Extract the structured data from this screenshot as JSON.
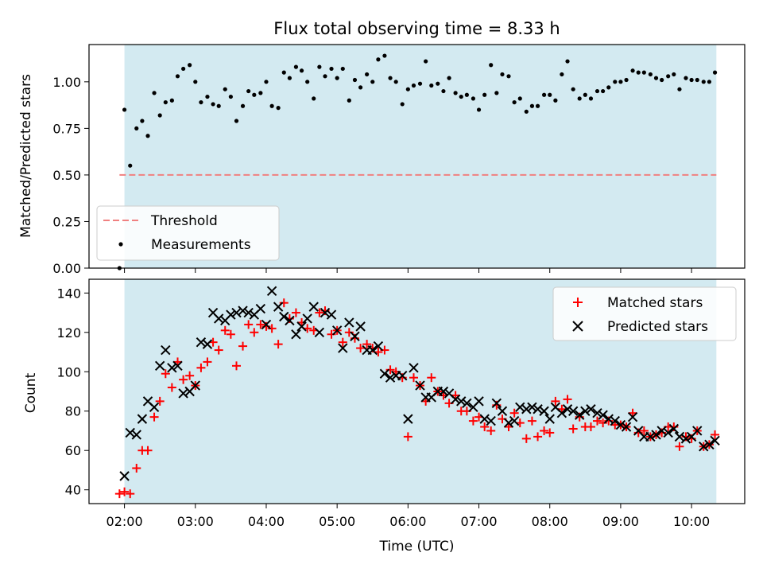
{
  "figure": {
    "title": "Flux total observing time = 8.33 h",
    "x_label": "Time (UTC)"
  },
  "chart_data": [
    {
      "type": "scatter",
      "title": "Flux total observing time = 8.33 h",
      "ylabel": "Matched/Predicted stars",
      "xlabel": "",
      "xlim_hours": [
        1.5,
        10.75
      ],
      "ylim": [
        0,
        1.2
      ],
      "yticks": [
        "0.00",
        "0.25",
        "0.50",
        "0.75",
        "1.00"
      ],
      "ytick_values": [
        0,
        0.25,
        0.5,
        0.75,
        1.0
      ],
      "shaded_span_hours": [
        2.0,
        10.35
      ],
      "shade_color": "#d3eaf1",
      "legend_position": "lower-left",
      "threshold": {
        "name": "Threshold",
        "value": 0.5,
        "color": "#f08080",
        "x_start": 1.93,
        "x_end": 10.35
      },
      "series": [
        {
          "name": "Measurements",
          "color": "#000000",
          "x": [
            1.93,
            2.0,
            2.08,
            2.17,
            2.25,
            2.33,
            2.42,
            2.5,
            2.58,
            2.67,
            2.75,
            2.83,
            2.92,
            3.0,
            3.08,
            3.17,
            3.25,
            3.33,
            3.42,
            3.5,
            3.58,
            3.67,
            3.75,
            3.83,
            3.92,
            4.0,
            4.08,
            4.17,
            4.25,
            4.33,
            4.42,
            4.5,
            4.58,
            4.67,
            4.75,
            4.83,
            4.92,
            5.0,
            5.08,
            5.17,
            5.25,
            5.33,
            5.42,
            5.5,
            5.58,
            5.67,
            5.75,
            5.83,
            5.92,
            6.0,
            6.08,
            6.17,
            6.25,
            6.33,
            6.42,
            6.5,
            6.58,
            6.67,
            6.75,
            6.83,
            6.92,
            7.0,
            7.08,
            7.17,
            7.25,
            7.33,
            7.42,
            7.5,
            7.58,
            7.67,
            7.75,
            7.83,
            7.92,
            8.0,
            8.08,
            8.17,
            8.25,
            8.33,
            8.42,
            8.5,
            8.58,
            8.67,
            8.75,
            8.83,
            8.92,
            9.0,
            9.08,
            9.17,
            9.25,
            9.33,
            9.42,
            9.5,
            9.58,
            9.67,
            9.75,
            9.83,
            9.92,
            10.0,
            10.08,
            10.17,
            10.25,
            10.33
          ],
          "y": [
            0.0,
            0.85,
            0.55,
            0.75,
            0.79,
            0.71,
            0.94,
            0.82,
            0.89,
            0.9,
            1.03,
            1.07,
            1.09,
            1.0,
            0.89,
            0.92,
            0.88,
            0.87,
            0.96,
            0.92,
            0.79,
            0.87,
            0.95,
            0.93,
            0.94,
            1.0,
            0.87,
            0.86,
            1.05,
            1.02,
            1.08,
            1.06,
            1.0,
            0.91,
            1.08,
            1.03,
            1.07,
            1.02,
            1.07,
            0.9,
            1.01,
            0.97,
            1.04,
            1.0,
            1.12,
            1.14,
            1.02,
            1.0,
            0.88,
            0.96,
            0.98,
            0.99,
            1.11,
            0.98,
            0.99,
            0.95,
            1.02,
            0.94,
            0.92,
            0.93,
            0.91,
            0.85,
            0.93,
            1.09,
            0.94,
            1.04,
            1.03,
            0.89,
            0.91,
            0.84,
            0.87,
            0.87,
            0.93,
            0.93,
            0.9,
            1.04,
            1.11,
            0.96,
            0.91,
            0.93,
            0.91,
            0.95,
            0.95,
            0.97,
            1.0,
            1.0,
            1.01,
            1.06,
            1.05,
            1.05,
            1.04,
            1.02,
            1.01,
            1.03,
            1.04,
            0.96,
            1.02,
            1.01,
            1.01,
            1.0,
            1.0,
            1.05
          ]
        }
      ]
    },
    {
      "type": "scatter",
      "ylabel": "Count",
      "xlabel": "Time (UTC)",
      "xlim_hours": [
        1.5,
        10.75
      ],
      "ylim": [
        33,
        147
      ],
      "yticks": [
        "40",
        "60",
        "80",
        "100",
        "120",
        "140"
      ],
      "ytick_values": [
        40,
        60,
        80,
        100,
        120,
        140
      ],
      "xticks": [
        "02:00",
        "03:00",
        "04:00",
        "05:00",
        "06:00",
        "07:00",
        "08:00",
        "09:00",
        "10:00"
      ],
      "xtick_values": [
        2,
        3,
        4,
        5,
        6,
        7,
        8,
        9,
        10
      ],
      "shaded_span_hours": [
        2.0,
        10.35
      ],
      "shade_color": "#d3eaf1",
      "legend_position": "top-right",
      "series": [
        {
          "name": "Matched stars",
          "marker": "plus",
          "color": "#ff0000",
          "x": [
            1.93,
            2.0,
            2.08,
            2.17,
            2.25,
            2.33,
            2.42,
            2.5,
            2.58,
            2.67,
            2.75,
            2.83,
            2.92,
            3.0,
            3.08,
            3.17,
            3.25,
            3.33,
            3.42,
            3.5,
            3.58,
            3.67,
            3.75,
            3.83,
            3.92,
            4.0,
            4.08,
            4.17,
            4.25,
            4.33,
            4.42,
            4.5,
            4.58,
            4.67,
            4.75,
            4.83,
            4.92,
            5.0,
            5.08,
            5.17,
            5.25,
            5.33,
            5.42,
            5.5,
            5.58,
            5.67,
            5.75,
            5.83,
            5.92,
            6.0,
            6.08,
            6.17,
            6.25,
            6.33,
            6.42,
            6.5,
            6.58,
            6.67,
            6.75,
            6.83,
            6.92,
            7.0,
            7.08,
            7.17,
            7.25,
            7.33,
            7.42,
            7.5,
            7.58,
            7.67,
            7.75,
            7.83,
            7.92,
            8.0,
            8.08,
            8.17,
            8.25,
            8.33,
            8.42,
            8.5,
            8.58,
            8.67,
            8.75,
            8.83,
            8.92,
            9.0,
            9.08,
            9.17,
            9.25,
            9.33,
            9.42,
            9.5,
            9.58,
            9.67,
            9.75,
            9.83,
            9.92,
            10.0,
            10.08,
            10.17,
            10.25,
            10.33
          ],
          "y": [
            38,
            39,
            38,
            51,
            60,
            60,
            77,
            85,
            99,
            92,
            105,
            96,
            98,
            93,
            102,
            105,
            115,
            111,
            121,
            119,
            103,
            113,
            124,
            120,
            124,
            123,
            122,
            114,
            135,
            127,
            130,
            125,
            122,
            121,
            130,
            131,
            119,
            121,
            115,
            120,
            117,
            112,
            114,
            112,
            110,
            111,
            101,
            100,
            97,
            67,
            97,
            93,
            85,
            97,
            90,
            88,
            84,
            88,
            80,
            80,
            75,
            77,
            72,
            70,
            83,
            76,
            72,
            79,
            74,
            66,
            75,
            67,
            70,
            69,
            85,
            81,
            86,
            71,
            77,
            72,
            72,
            75,
            74,
            75,
            73,
            73,
            72,
            79,
            69,
            70,
            67,
            68,
            69,
            72,
            72,
            62,
            67,
            66,
            70,
            62,
            63,
            68
          ]
        },
        {
          "name": "Predicted stars",
          "marker": "x",
          "color": "#000000",
          "x": [
            2.0,
            2.08,
            2.17,
            2.25,
            2.33,
            2.42,
            2.5,
            2.58,
            2.67,
            2.75,
            2.83,
            2.92,
            3.0,
            3.08,
            3.17,
            3.25,
            3.33,
            3.42,
            3.5,
            3.58,
            3.67,
            3.75,
            3.83,
            3.92,
            4.0,
            4.08,
            4.17,
            4.25,
            4.33,
            4.42,
            4.5,
            4.58,
            4.67,
            4.75,
            4.83,
            4.92,
            5.0,
            5.08,
            5.17,
            5.25,
            5.33,
            5.42,
            5.5,
            5.58,
            5.67,
            5.75,
            5.83,
            5.92,
            6.0,
            6.08,
            6.17,
            6.25,
            6.33,
            6.42,
            6.5,
            6.58,
            6.67,
            6.75,
            6.83,
            6.92,
            7.0,
            7.08,
            7.17,
            7.25,
            7.33,
            7.42,
            7.5,
            7.58,
            7.67,
            7.75,
            7.83,
            7.92,
            8.0,
            8.08,
            8.17,
            8.25,
            8.33,
            8.42,
            8.5,
            8.58,
            8.67,
            8.75,
            8.83,
            8.92,
            9.0,
            9.08,
            9.17,
            9.25,
            9.33,
            9.42,
            9.5,
            9.58,
            9.67,
            9.75,
            9.83,
            9.92,
            10.0,
            10.08,
            10.17,
            10.25,
            10.33
          ],
          "y": [
            47,
            69,
            68,
            76,
            85,
            82,
            103,
            111,
            102,
            103,
            89,
            90,
            93,
            115,
            114,
            130,
            127,
            126,
            129,
            130,
            131,
            130,
            129,
            132,
            124,
            141,
            133,
            128,
            126,
            119,
            123,
            127,
            133,
            120,
            130,
            129,
            121,
            112,
            125,
            118,
            123,
            111,
            111,
            113,
            99,
            97,
            98,
            98,
            76,
            102,
            93,
            87,
            87,
            90,
            90,
            89,
            86,
            85,
            84,
            82,
            85,
            76,
            75,
            84,
            80,
            74,
            75,
            82,
            81,
            82,
            81,
            80,
            76,
            82,
            79,
            81,
            80,
            78,
            80,
            81,
            79,
            78,
            76,
            75,
            73,
            72,
            77,
            70,
            67,
            67,
            68,
            70,
            69,
            71,
            67,
            66,
            67,
            70,
            62,
            63,
            65
          ]
        }
      ]
    }
  ]
}
